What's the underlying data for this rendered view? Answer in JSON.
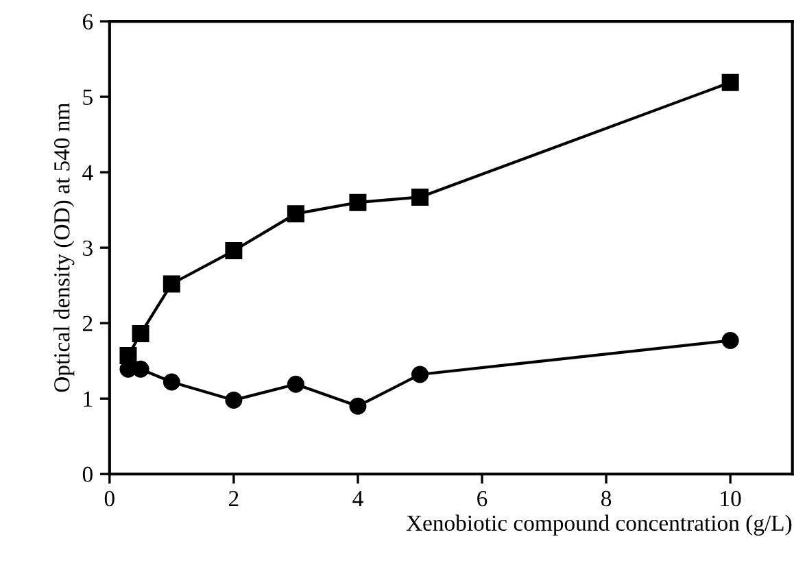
{
  "chart_data": {
    "type": "line",
    "xlabel": "Xenobiotic compound concentration (g/L)",
    "ylabel": "Optical density (OD) at 540 nm",
    "xlim": [
      0,
      11
    ],
    "ylim": [
      0,
      6
    ],
    "xticks": [
      0,
      2,
      4,
      6,
      8,
      10
    ],
    "yticks": [
      0,
      1,
      2,
      3,
      4,
      5,
      6
    ],
    "grid": false,
    "series": [
      {
        "color": "#000000",
        "marker": "square",
        "x": [
          0.3,
          0.5,
          1,
          2,
          3,
          4,
          5,
          10
        ],
        "values": [
          1.57,
          1.86,
          2.52,
          2.96,
          3.45,
          3.6,
          3.67,
          5.19
        ]
      },
      {
        "color": "#000000",
        "marker": "circle",
        "x": [
          0.3,
          0.5,
          1,
          2,
          3,
          4,
          5,
          10
        ],
        "values": [
          1.39,
          1.39,
          1.22,
          0.98,
          1.19,
          0.9,
          1.32,
          1.77
        ]
      }
    ]
  }
}
